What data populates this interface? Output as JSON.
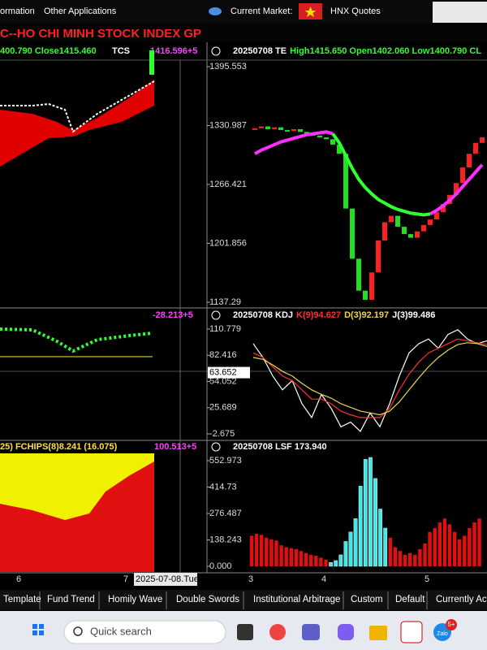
{
  "menu": {
    "items": [
      "ormation",
      "Other Applications"
    ],
    "market_label": "Current Market:",
    "market_value": "HNX Quotes"
  },
  "title": "C--HO CHI MINH STOCK INDEX  GP",
  "left_panels": [
    {
      "header": "400.790 Close1415.460",
      "indicator": "TCS",
      "value": "1416.596+5"
    },
    {
      "value": "-28.213+5"
    },
    {
      "header": "25) FCHIPS(8)8.241 (16.075)",
      "value": "100.513+5"
    }
  ],
  "chart_data": [
    {
      "type": "candlestick",
      "title_parts": [
        "20250708 TE",
        "High1415.650 Open1402.060 Low1400.790 CL"
      ],
      "ylim": [
        1131.95,
        1402.68
      ],
      "yticks": [
        1395.553,
        1330.987,
        1266.421,
        1201.856,
        1137.29
      ],
      "up_color": "#ff2020",
      "down_color": "#20e020",
      "values": [
        1328,
        1330,
        1327,
        1329,
        1326,
        1325,
        1327,
        1324,
        1322,
        1320,
        1318,
        1316,
        1310,
        1300,
        1240,
        1185,
        1150,
        1140,
        1170,
        1205,
        1225,
        1232,
        1220,
        1212,
        1208,
        1215,
        1222,
        1228,
        1236,
        1245,
        1255,
        1268,
        1285,
        1300,
        1312,
        1318
      ],
      "series": [
        {
          "color": "#ff30ff",
          "values": [
            1300,
            1304,
            1307,
            1310,
            1313,
            1315,
            1317,
            1319,
            1321,
            1322,
            1323,
            1324,
            1322,
            null,
            null,
            null,
            null,
            null,
            null,
            null,
            null,
            null,
            null,
            null,
            null,
            null,
            null,
            1234,
            1238,
            1243,
            1249,
            1256,
            1264,
            1272,
            1280,
            1288
          ]
        },
        {
          "color": "#30ff30",
          "values": [
            null,
            null,
            null,
            null,
            null,
            null,
            null,
            null,
            null,
            null,
            null,
            null,
            1322,
            1312,
            1298,
            1284,
            1272,
            1263,
            1256,
            1250,
            1246,
            1242,
            1239,
            1237,
            1235,
            1234,
            1233,
            1234,
            null,
            null,
            null,
            null,
            null,
            null,
            null,
            null
          ]
        }
      ]
    },
    {
      "type": "line",
      "title_parts": [
        "20250708 KDJ",
        "K(9)94.627",
        "D(3)92.197",
        "J(3)99.486"
      ],
      "ylim": [
        -7.95,
        118.7
      ],
      "yticks": [
        110.779,
        82.416,
        54.052,
        25.689,
        -2.675
      ],
      "current_value": 63.652,
      "series": [
        {
          "color": "#ffffff",
          "values": [
            95,
            80,
            60,
            45,
            55,
            30,
            15,
            40,
            25,
            5,
            10,
            0,
            20,
            5,
            30,
            60,
            85,
            95,
            100,
            90,
            105,
            110,
            100,
            95,
            98
          ]
        },
        {
          "color": "#ff3030",
          "values": [
            85,
            80,
            70,
            60,
            55,
            45,
            35,
            35,
            30,
            22,
            18,
            15,
            15,
            15,
            25,
            45,
            62,
            75,
            85,
            90,
            95,
            100,
            98,
            96,
            94
          ]
        },
        {
          "color": "#e8d850",
          "values": [
            80,
            78,
            72,
            65,
            60,
            52,
            45,
            40,
            36,
            30,
            26,
            22,
            20,
            18,
            22,
            32,
            45,
            58,
            70,
            80,
            88,
            94,
            96,
            95,
            92
          ]
        }
      ]
    },
    {
      "type": "bar",
      "title_parts": [
        "20250708 LSF 173.940"
      ],
      "ylim": [
        -12.8,
        591.3
      ],
      "yticks": [
        552.973,
        414.73,
        276.487,
        138.243,
        {
          "value": 0,
          "label": "0.000"
        }
      ],
      "series": [
        {
          "color": "#e01010",
          "values": [
            160,
            170,
            165,
            150,
            140,
            135,
            110,
            100,
            95,
            90,
            80,
            70,
            60,
            55,
            45,
            35,
            null,
            null,
            null,
            null,
            null,
            null,
            null,
            null,
            null,
            null,
            null,
            null,
            150,
            100,
            80,
            60,
            70,
            60,
            90,
            120,
            180,
            200,
            230,
            250,
            220,
            180,
            140,
            160,
            200,
            230,
            250
          ]
        },
        {
          "color": "#40e8e8",
          "values": [
            null,
            null,
            null,
            null,
            null,
            null,
            null,
            null,
            null,
            null,
            null,
            null,
            null,
            null,
            null,
            null,
            20,
            30,
            60,
            130,
            180,
            250,
            420,
            560,
            570,
            460,
            300,
            200,
            null,
            null,
            null,
            null,
            null,
            null,
            null,
            null,
            null,
            null,
            null,
            null,
            null,
            null,
            null,
            null,
            null,
            null,
            null
          ]
        }
      ]
    }
  ],
  "x_axis": {
    "left_labels": [
      "6",
      "7"
    ],
    "cursor": "2025-07-08.Tue",
    "right_labels": [
      "3",
      "4",
      "5"
    ]
  },
  "tabs": [
    "Template",
    "Fund Trend",
    "Homily Wave",
    "Double Swords",
    "Institutional Arbitrage",
    "Custom",
    "Default",
    "Currently Acti"
  ],
  "taskbar": {
    "search": "Quick search",
    "badge": "5+",
    "app": "Zalo"
  }
}
